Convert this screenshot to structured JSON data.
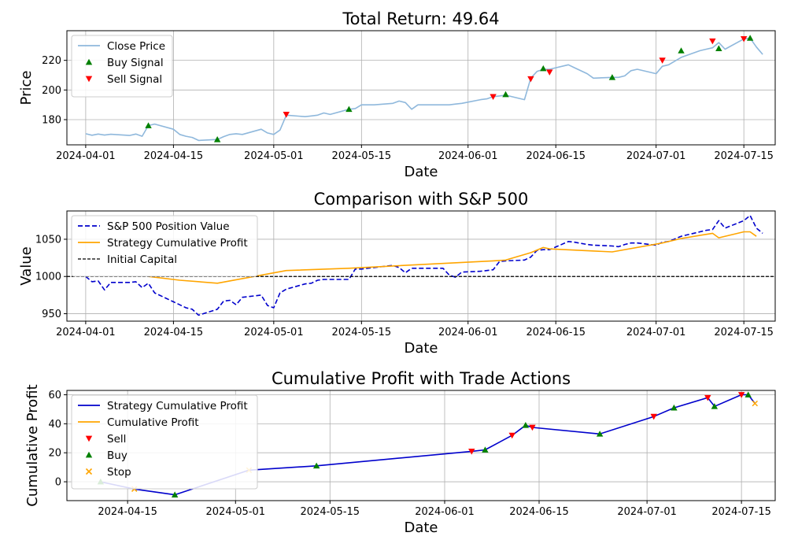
{
  "chart_data": [
    {
      "type": "line",
      "title": "Total Return: 49.64",
      "xlabel": "Date",
      "ylabel": "Price",
      "xlim": [
        "2024-03-29",
        "2024-07-20"
      ],
      "ylim": [
        163,
        240
      ],
      "grid": true,
      "legend_position": "top-left",
      "x_ticks": [
        "2024-04-01",
        "2024-04-15",
        "2024-05-01",
        "2024-05-15",
        "2024-06-01",
        "2024-06-15",
        "2024-07-01",
        "2024-07-15"
      ],
      "y_ticks": [
        180,
        200,
        220
      ],
      "colors": {
        "close": "#8fb8dc",
        "buy": "#008000",
        "sell": "#ff0000"
      },
      "series": [
        {
          "name": "Close Price",
          "kind": "line",
          "x": [
            "2024-04-01",
            "2024-04-02",
            "2024-04-03",
            "2024-04-04",
            "2024-04-05",
            "2024-04-08",
            "2024-04-09",
            "2024-04-10",
            "2024-04-11",
            "2024-04-12",
            "2024-04-15",
            "2024-04-16",
            "2024-04-17",
            "2024-04-18",
            "2024-04-19",
            "2024-04-22",
            "2024-04-23",
            "2024-04-24",
            "2024-04-25",
            "2024-04-26",
            "2024-04-29",
            "2024-04-30",
            "2024-05-01",
            "2024-05-02",
            "2024-05-03",
            "2024-05-06",
            "2024-05-07",
            "2024-05-08",
            "2024-05-09",
            "2024-05-10",
            "2024-05-13",
            "2024-05-14",
            "2024-05-15",
            "2024-05-16",
            "2024-05-17",
            "2024-05-20",
            "2024-05-21",
            "2024-05-22",
            "2024-05-23",
            "2024-05-24",
            "2024-05-28",
            "2024-05-29",
            "2024-05-30",
            "2024-05-31",
            "2024-06-03",
            "2024-06-04",
            "2024-06-05",
            "2024-06-06",
            "2024-06-07",
            "2024-06-10",
            "2024-06-11",
            "2024-06-12",
            "2024-06-13",
            "2024-06-14",
            "2024-06-17",
            "2024-06-18",
            "2024-06-20",
            "2024-06-21",
            "2024-06-24",
            "2024-06-25",
            "2024-06-26",
            "2024-06-27",
            "2024-06-28",
            "2024-07-01",
            "2024-07-02",
            "2024-07-03",
            "2024-07-05",
            "2024-07-08",
            "2024-07-09",
            "2024-07-10",
            "2024-07-11",
            "2024-07-12",
            "2024-07-15",
            "2024-07-16",
            "2024-07-17",
            "2024-07-18"
          ],
          "values": [
            170.5,
            169.5,
            170.3,
            169.6,
            170.1,
            169.3,
            170.3,
            168.8,
            176.0,
            177.0,
            173.5,
            170.0,
            168.8,
            168.0,
            166.0,
            166.6,
            168.5,
            170.0,
            170.5,
            170.0,
            173.5,
            171.0,
            170.0,
            173.0,
            183.0,
            182.0,
            182.5,
            183.0,
            184.5,
            183.5,
            187.0,
            187.5,
            190.0,
            190.0,
            190.0,
            191.0,
            192.5,
            191.5,
            187.0,
            190.0,
            190.0,
            190.0,
            190.5,
            191.0,
            193.5,
            194.0,
            195.5,
            196.0,
            196.5,
            193.5,
            208.0,
            212.5,
            214.0,
            214.0,
            217.0,
            215.0,
            211.0,
            208.0,
            208.5,
            208.5,
            209.5,
            213.0,
            214.0,
            211.0,
            216.0,
            217.0,
            222.0,
            226.5,
            227.5,
            228.5,
            232.0,
            227.5,
            234.5,
            235.0,
            229.0,
            224.0
          ]
        },
        {
          "name": "Buy Signal",
          "kind": "marker-up",
          "x": [
            "2024-04-11",
            "2024-04-22",
            "2024-05-13",
            "2024-06-07",
            "2024-06-13",
            "2024-06-24",
            "2024-07-05",
            "2024-07-11",
            "2024-07-16"
          ],
          "values": [
            176.0,
            166.6,
            187.0,
            197.0,
            214.5,
            208.5,
            226.5,
            228.0,
            235.0
          ]
        },
        {
          "name": "Sell Signal",
          "kind": "marker-down",
          "x": [
            "2024-05-03",
            "2024-06-05",
            "2024-06-11",
            "2024-06-14",
            "2024-07-02",
            "2024-07-10",
            "2024-07-15"
          ],
          "values": [
            183.5,
            195.5,
            207.5,
            212.0,
            220.0,
            233.0,
            234.5
          ]
        }
      ]
    },
    {
      "type": "line",
      "title": "Comparison with S&P 500",
      "xlabel": "Date",
      "ylabel": "Value",
      "xlim": [
        "2024-03-29",
        "2024-07-20"
      ],
      "ylim": [
        940,
        1088
      ],
      "grid": true,
      "legend_position": "top-left",
      "x_ticks": [
        "2024-04-01",
        "2024-04-15",
        "2024-05-01",
        "2024-05-15",
        "2024-06-01",
        "2024-06-15",
        "2024-07-01",
        "2024-07-15"
      ],
      "y_ticks": [
        950,
        1000,
        1050
      ],
      "colors": {
        "sp500": "#0000cc",
        "strategy": "#ffa500",
        "capital": "#000000"
      },
      "series": [
        {
          "name": "S&P 500 Position Value",
          "kind": "dashed",
          "x": [
            "2024-04-01",
            "2024-04-02",
            "2024-04-03",
            "2024-04-04",
            "2024-04-05",
            "2024-04-08",
            "2024-04-09",
            "2024-04-10",
            "2024-04-11",
            "2024-04-12",
            "2024-04-15",
            "2024-04-16",
            "2024-04-17",
            "2024-04-18",
            "2024-04-19",
            "2024-04-22",
            "2024-04-23",
            "2024-04-24",
            "2024-04-25",
            "2024-04-26",
            "2024-04-29",
            "2024-04-30",
            "2024-05-01",
            "2024-05-02",
            "2024-05-03",
            "2024-05-06",
            "2024-05-07",
            "2024-05-08",
            "2024-05-09",
            "2024-05-10",
            "2024-05-13",
            "2024-05-14",
            "2024-05-15",
            "2024-05-16",
            "2024-05-17",
            "2024-05-20",
            "2024-05-21",
            "2024-05-22",
            "2024-05-23",
            "2024-05-24",
            "2024-05-28",
            "2024-05-29",
            "2024-05-30",
            "2024-05-31",
            "2024-06-03",
            "2024-06-04",
            "2024-06-05",
            "2024-06-06",
            "2024-06-07",
            "2024-06-10",
            "2024-06-11",
            "2024-06-12",
            "2024-06-13",
            "2024-06-14",
            "2024-06-17",
            "2024-06-18",
            "2024-06-20",
            "2024-06-21",
            "2024-06-24",
            "2024-06-25",
            "2024-06-26",
            "2024-06-27",
            "2024-06-28",
            "2024-07-01",
            "2024-07-02",
            "2024-07-03",
            "2024-07-05",
            "2024-07-08",
            "2024-07-09",
            "2024-07-10",
            "2024-07-11",
            "2024-07-12",
            "2024-07-15",
            "2024-07-16",
            "2024-07-17",
            "2024-07-18"
          ],
          "values": [
            1000,
            993,
            994,
            982,
            992,
            992,
            993,
            985,
            991,
            978,
            966,
            962,
            958,
            956,
            948,
            956,
            967,
            968,
            962,
            972,
            975,
            961,
            958,
            978,
            983,
            990,
            991,
            995,
            996,
            996,
            996,
            1010,
            1010,
            1011,
            1012,
            1015,
            1012,
            1005,
            1011,
            1011,
            1011,
            1002,
            999,
            1006,
            1007,
            1008,
            1009,
            1020,
            1021,
            1022,
            1026,
            1035,
            1036,
            1036,
            1047,
            1046,
            1043,
            1042,
            1041,
            1040,
            1043,
            1045,
            1045,
            1042,
            1046,
            1047,
            1054,
            1060,
            1062,
            1063,
            1075,
            1065,
            1075,
            1082,
            1065,
            1058
          ]
        },
        {
          "name": "Strategy Cumulative Profit",
          "kind": "solid",
          "x": [
            "2024-04-11",
            "2024-04-16",
            "2024-04-22",
            "2024-05-03",
            "2024-05-13",
            "2024-06-05",
            "2024-06-07",
            "2024-06-11",
            "2024-06-13",
            "2024-06-14",
            "2024-06-24",
            "2024-07-02",
            "2024-07-05",
            "2024-07-10",
            "2024-07-11",
            "2024-07-15",
            "2024-07-16",
            "2024-07-17"
          ],
          "values": [
            1000,
            995,
            991,
            1008,
            1011,
            1021,
            1022,
            1032,
            1039,
            1037,
            1033,
            1045,
            1051,
            1058,
            1052,
            1060,
            1060,
            1054
          ]
        },
        {
          "name": "Initial Capital",
          "kind": "hline",
          "value": 1000
        }
      ]
    },
    {
      "type": "line",
      "title": "Cumulative Profit with Trade Actions",
      "xlabel": "Date",
      "ylabel": "Cumulative Profit",
      "xlim": [
        "2024-04-06",
        "2024-07-20"
      ],
      "ylim": [
        -13,
        63
      ],
      "grid": true,
      "legend_position": "top-left",
      "x_ticks": [
        "2024-04-15",
        "2024-05-01",
        "2024-05-15",
        "2024-06-01",
        "2024-06-15",
        "2024-07-01",
        "2024-07-15"
      ],
      "y_ticks": [
        0,
        20,
        40,
        60
      ],
      "colors": {
        "strategy": "#0000cc",
        "cumulative": "#ffa500",
        "sell": "#ff0000",
        "buy": "#008000",
        "stop": "#ffa500"
      },
      "series": [
        {
          "name": "Strategy Cumulative Profit",
          "kind": "solid",
          "x": [
            "2024-04-11",
            "2024-04-16",
            "2024-04-22",
            "2024-05-03",
            "2024-05-13",
            "2024-06-05",
            "2024-06-07",
            "2024-06-11",
            "2024-06-13",
            "2024-06-14",
            "2024-06-24",
            "2024-07-02",
            "2024-07-05",
            "2024-07-10",
            "2024-07-11",
            "2024-07-15",
            "2024-07-16",
            "2024-07-17"
          ],
          "values": [
            0,
            -5,
            -9,
            8,
            11,
            21,
            22,
            32,
            39,
            37.5,
            33,
            45,
            51,
            58,
            52,
            60,
            60,
            54
          ]
        },
        {
          "name": "Cumulative Profit",
          "kind": "solid-light",
          "x": [],
          "values": []
        },
        {
          "name": "Sell",
          "kind": "marker-down",
          "x": [
            "2024-06-05",
            "2024-06-11",
            "2024-06-14",
            "2024-07-02",
            "2024-07-10",
            "2024-07-15"
          ],
          "values": [
            21,
            32,
            37.5,
            45,
            58,
            60
          ]
        },
        {
          "name": "Buy",
          "kind": "marker-up",
          "x": [
            "2024-04-11",
            "2024-04-22",
            "2024-05-13",
            "2024-06-07",
            "2024-06-13",
            "2024-06-24",
            "2024-07-05",
            "2024-07-11",
            "2024-07-16"
          ],
          "values": [
            0,
            -9,
            11,
            22,
            39,
            33,
            51,
            52,
            60
          ]
        },
        {
          "name": "Stop",
          "kind": "marker-x",
          "x": [
            "2024-04-16",
            "2024-05-03",
            "2024-07-17"
          ],
          "values": [
            -5,
            8,
            54
          ]
        }
      ]
    }
  ]
}
